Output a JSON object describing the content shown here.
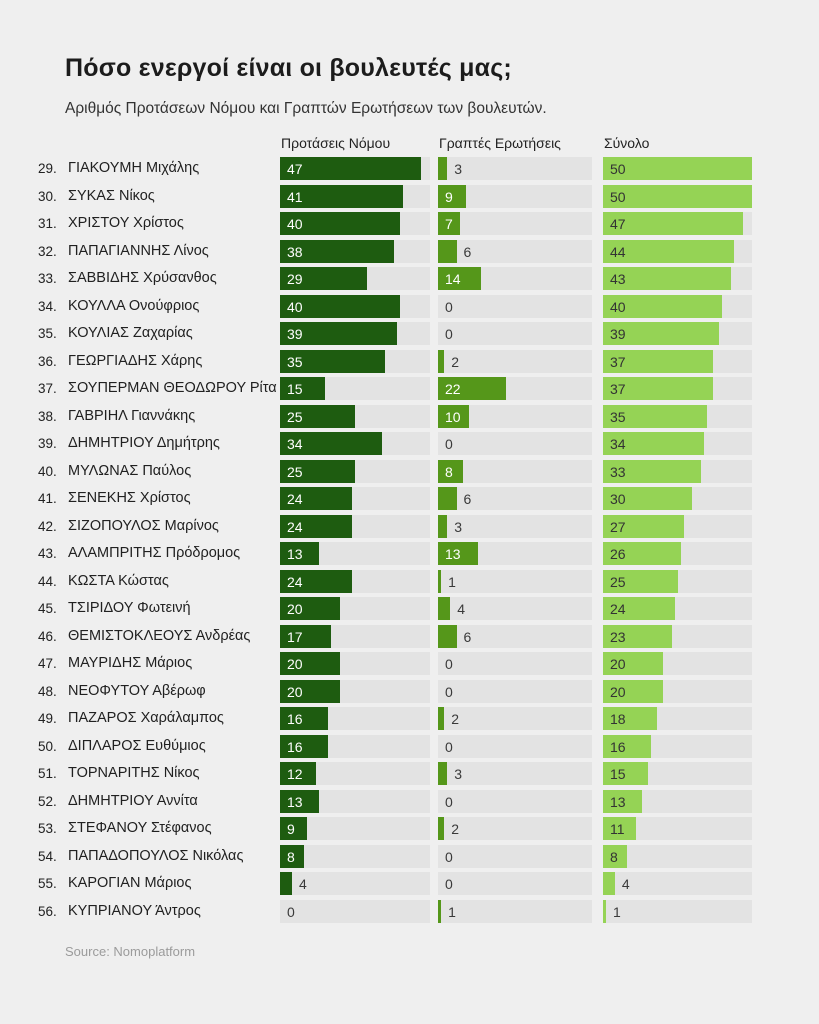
{
  "title": "Πόσο ενεργοί είναι οι βουλευτές μας;",
  "subtitle": "Αριθμός Προτάσεων Νόμου  και Γραπτών Ερωτήσεων  των βουλευτών.",
  "source": "Source: Nomoplatform",
  "colors": {
    "background": "#efefef",
    "track": "#e3e3e3",
    "proposals_bar": "#1e5c10",
    "questions_bar": "#55971a",
    "total_bar": "#95d355",
    "label_inside_dark_bar": "#ffffff",
    "label_inside_light_bar": "#333333",
    "label_outside": "#3a3a3a"
  },
  "chart_data": {
    "type": "bar",
    "orientation": "horizontal",
    "title": "Πόσο ενεργοί είναι οι βουλευτές μας;",
    "subtitle": "Αριθμός Προτάσεων Νόμου  και Γραπτών Ερωτήσεων  των βουλευτών.",
    "value_axis_max": 50,
    "grid": false,
    "legend_position": "column-headers-top",
    "ranks": [
      "29.",
      "30.",
      "31.",
      "32.",
      "33.",
      "34.",
      "35.",
      "36.",
      "37.",
      "38.",
      "39.",
      "40.",
      "41.",
      "42.",
      "43.",
      "44.",
      "45.",
      "46.",
      "47.",
      "48.",
      "49.",
      "50.",
      "51.",
      "52.",
      "53.",
      "54.",
      "55.",
      "56."
    ],
    "categories": [
      "ΓΙΑΚΟΥΜΗ Μιχάλης",
      "ΣΥΚΑΣ Νίκος",
      "ΧΡΙΣΤΟΥ Χρίστος",
      "ΠΑΠΑΓΙΑΝΝΗΣ Λίνος",
      "ΣΑΒΒΙΔΗΣ Χρύσανθος",
      "ΚΟΥΛΛΑ Ονούφριος",
      "ΚΟΥΛΙΑΣ Ζαχαρίας",
      "ΓΕΩΡΓΙΑΔΗΣ Χάρης",
      "ΣΟΥΠΕΡΜΑΝ ΘΕΟΔΩΡΟΥ Ρίτα",
      "ΓΑΒΡΙΗΛ Γιαννάκης",
      "ΔΗΜΗΤΡΙΟΥ Δημήτρης",
      "ΜΥΛΩΝΑΣ Παύλος",
      "ΣΕΝΕΚΗΣ Χρίστος",
      "ΣΙΖΟΠΟΥΛΟΣ Μαρίνος",
      "ΑΛΑΜΠΡΙΤΗΣ Πρόδρομος",
      "ΚΩΣΤΑ Κώστας",
      "ΤΣΙΡΙΔΟΥ Φωτεινή",
      "ΘΕΜΙΣΤΟΚΛΕΟΥΣ Ανδρέας",
      "ΜΑΥΡΙΔΗΣ Μάριος",
      "ΝΕΟΦΥΤΟΥ Αβέρωφ",
      "ΠΑΖΑΡΟΣ Χαράλαμπος",
      "ΔΙΠΛΑΡΟΣ Ευθύμιος",
      "ΤΟΡΝΑΡΙΤΗΣ Νίκος",
      "ΔΗΜΗΤΡΙΟΥ Αννίτα",
      "ΣΤΕΦΑΝΟΥ Στέφανος",
      "ΠΑΠΑΔΟΠΟΥΛΟΣ Νικόλας",
      "ΚΑΡΟΓΙΑΝ Μάριος",
      "ΚΥΠΡΙΑΝΟΥ Άντρος"
    ],
    "series": [
      {
        "name": "Προτάσεις Νόμου",
        "color": "#1e5c10",
        "values": [
          47,
          41,
          40,
          38,
          29,
          40,
          39,
          35,
          15,
          25,
          34,
          25,
          24,
          24,
          13,
          24,
          20,
          17,
          20,
          20,
          16,
          16,
          12,
          13,
          9,
          8,
          4,
          0
        ]
      },
      {
        "name": "Γραπτές Ερωτήσεις",
        "color": "#55971a",
        "values": [
          3,
          9,
          7,
          6,
          14,
          0,
          0,
          2,
          22,
          10,
          0,
          8,
          6,
          3,
          13,
          1,
          4,
          6,
          0,
          0,
          2,
          0,
          3,
          0,
          2,
          0,
          0,
          1
        ]
      },
      {
        "name": "Σύνολο",
        "color": "#95d355",
        "values": [
          50,
          50,
          47,
          44,
          43,
          40,
          39,
          37,
          37,
          35,
          34,
          33,
          30,
          27,
          26,
          25,
          24,
          23,
          20,
          20,
          18,
          16,
          15,
          13,
          11,
          8,
          4,
          1
        ]
      }
    ]
  }
}
